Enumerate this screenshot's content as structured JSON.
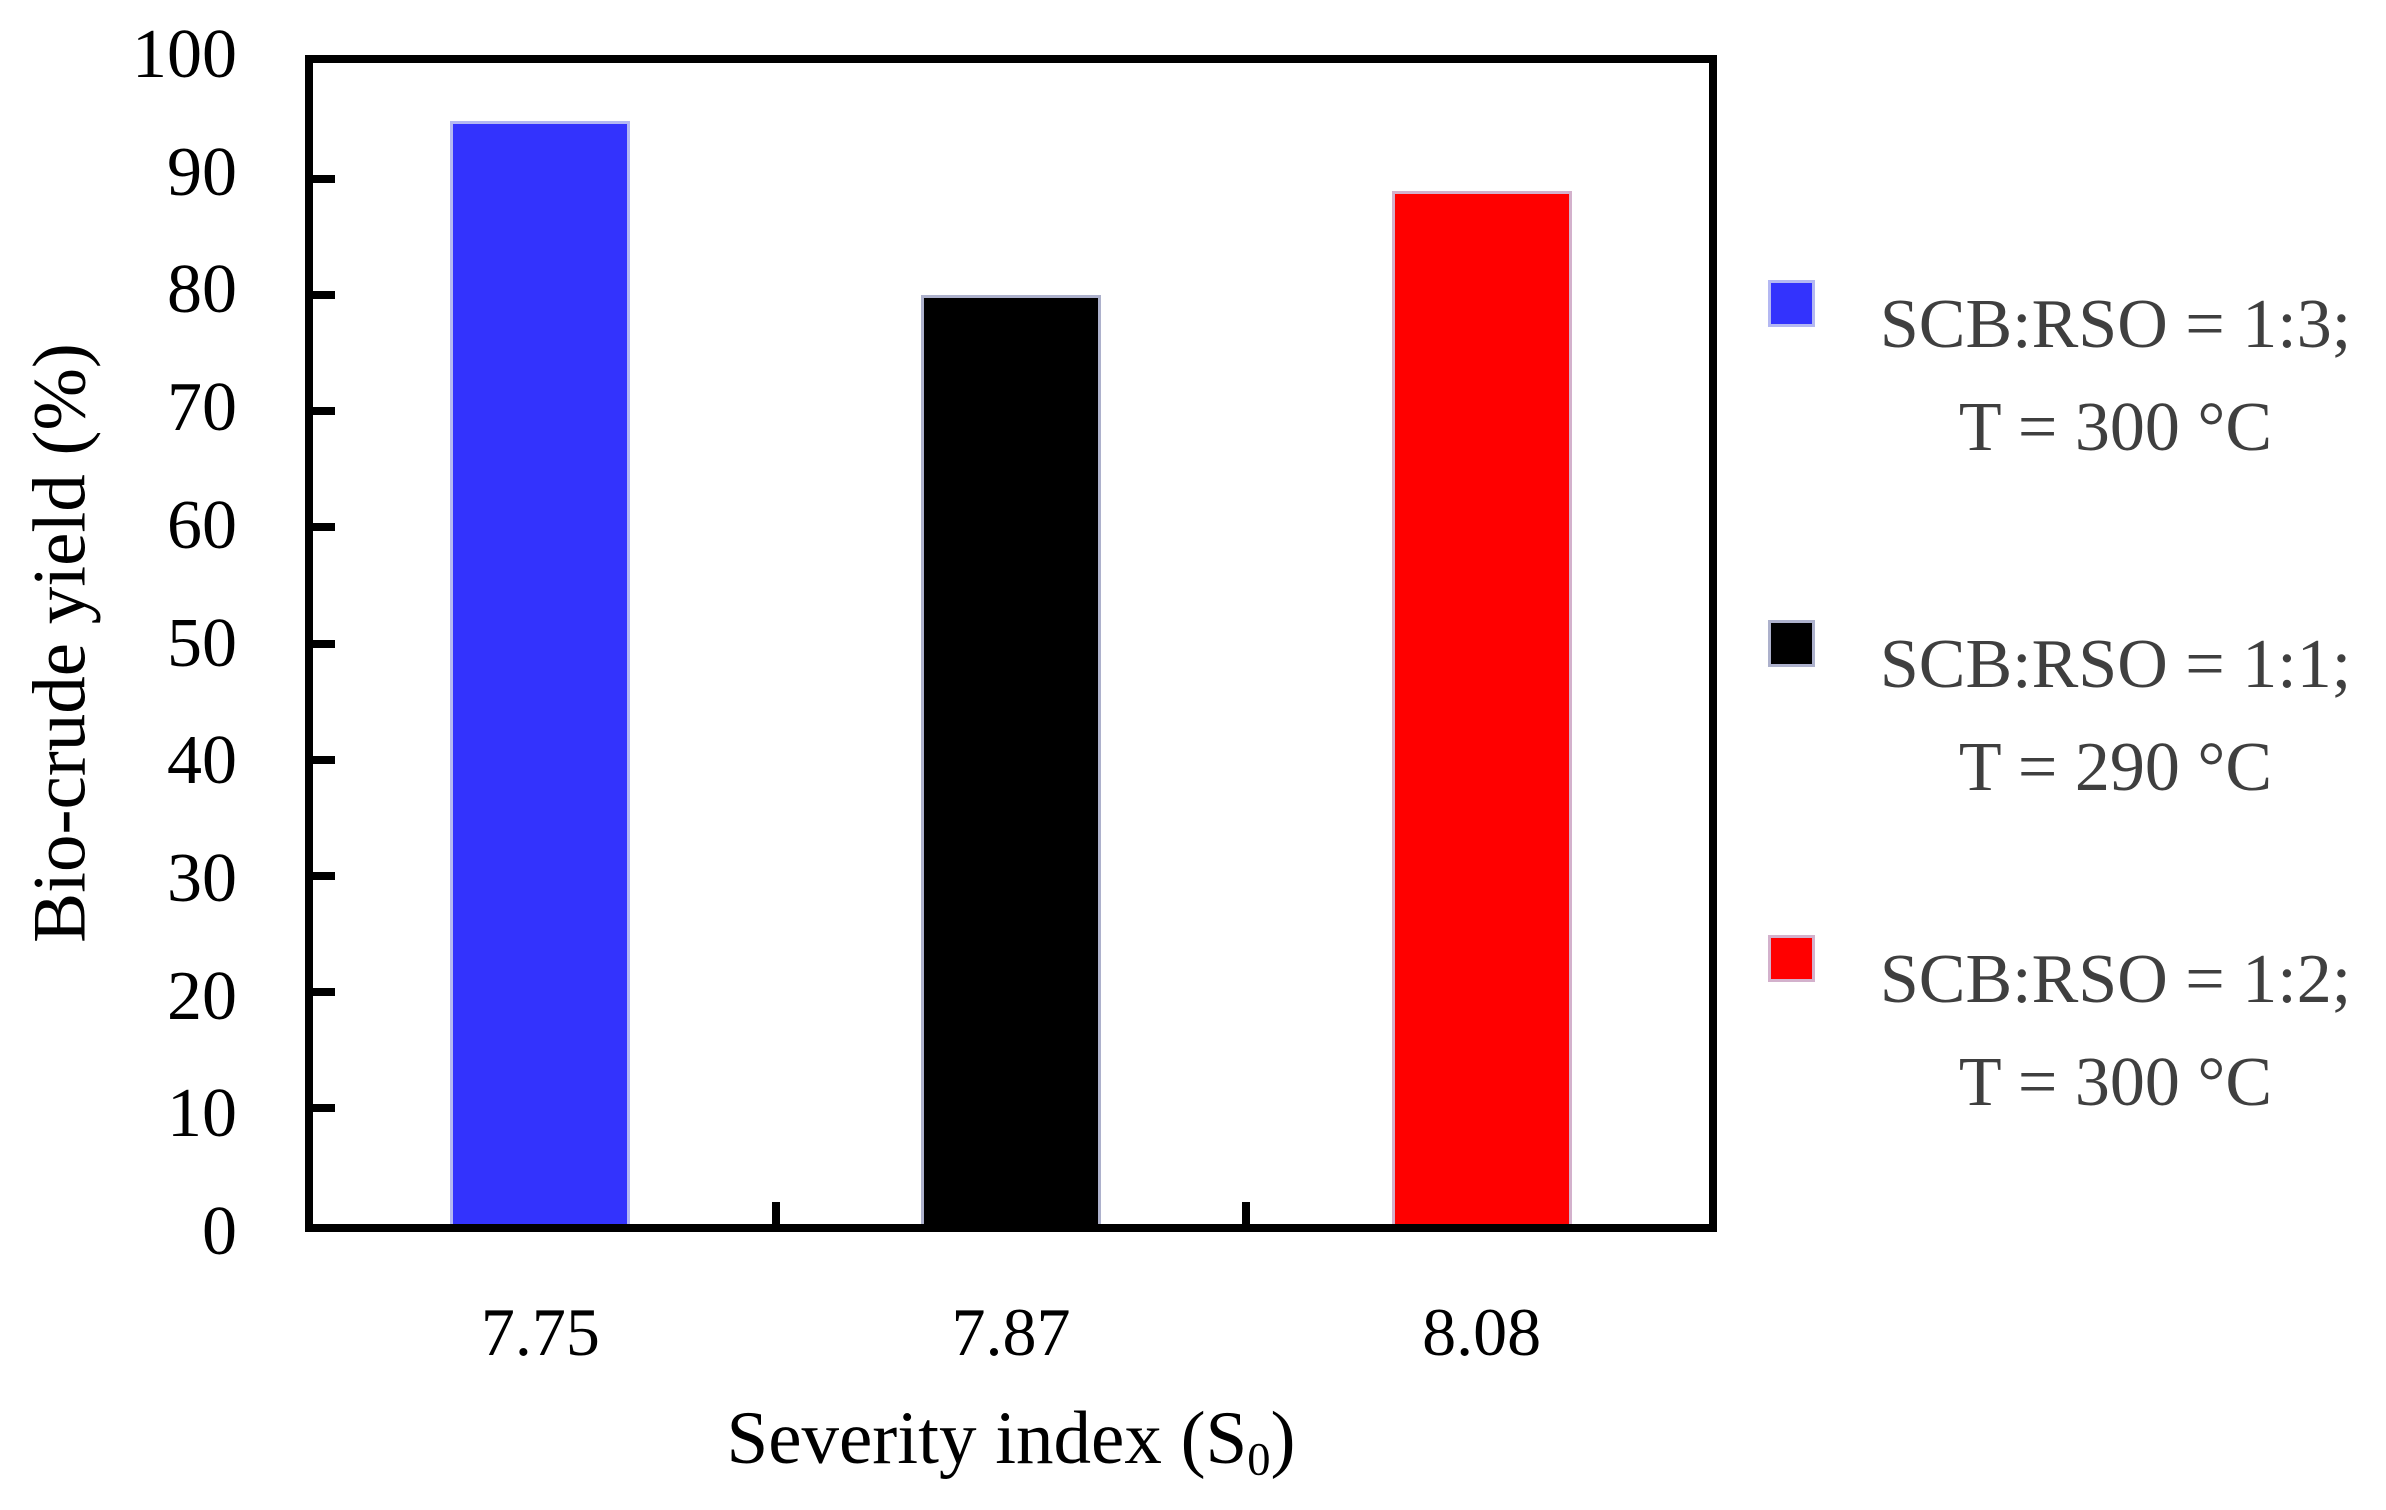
{
  "chart_data": {
    "type": "bar",
    "title": "",
    "categories": [
      "7.75",
      "7.87",
      "8.08"
    ],
    "values": [
      95,
      80,
      89
    ],
    "series": [
      {
        "name": "SCB:RSO = 1:3; T = 300 °C",
        "category": "7.75",
        "value": 95,
        "color": "#3333fd"
      },
      {
        "name": "SCB:RSO = 1:1; T = 290 °C",
        "category": "7.87",
        "value": 80,
        "color": "#000000"
      },
      {
        "name": "SCB:RSO = 1:2; T = 300 °C",
        "category": "8.08",
        "value": 89,
        "color": "#ff0000"
      }
    ],
    "xlabel_prefix": "Severity index (S",
    "xlabel_subscript": "0",
    "xlabel_suffix": ")",
    "ylabel": "Bio-crude yield (%)",
    "ylim": [
      0,
      100
    ],
    "ytick_step": 10,
    "yticks": [
      100,
      90,
      80,
      70,
      60,
      50,
      40,
      30,
      20,
      10,
      0
    ],
    "grid": false,
    "legend_position": "right",
    "legend": [
      {
        "swatch_color": "#3333fd",
        "line1": "SCB:RSO = 1:3;",
        "line2": "T = 300 °C"
      },
      {
        "swatch_color": "#000000",
        "line1": "SCB:RSO = 1:1;",
        "line2": "T = 290 °C"
      },
      {
        "swatch_color": "#ff0000",
        "line1": "SCB:RSO = 1:2;",
        "line2": "T = 300 °C"
      }
    ]
  }
}
